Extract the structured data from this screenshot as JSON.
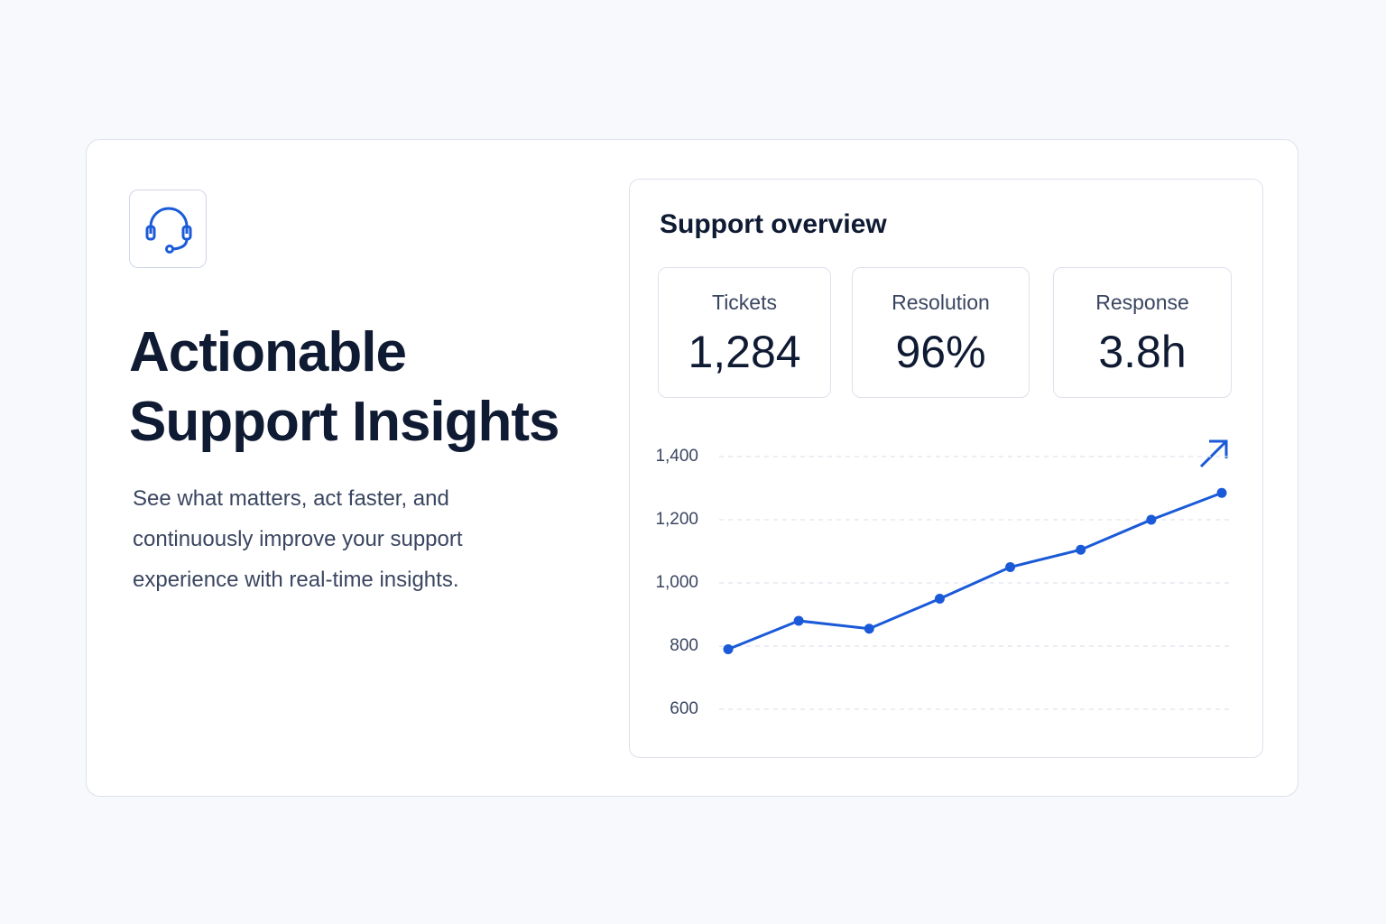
{
  "hero": {
    "title_lines": [
      "Actionable",
      "Support Insights"
    ],
    "description_lines": [
      "See what matters, act faster, and",
      "continuously improve your support",
      "experience with real-time insights."
    ]
  },
  "overview": {
    "title": "Support overview",
    "stats": [
      {
        "label": "Tickets",
        "value": "1,284"
      },
      {
        "label": "Resolution",
        "value": "96%"
      },
      {
        "label": "Response",
        "value": "3.8h"
      }
    ]
  },
  "chart_data": {
    "type": "line",
    "categories": [
      null,
      null,
      null,
      null,
      null,
      null,
      null,
      null
    ],
    "values": [
      790,
      880,
      855,
      950,
      1050,
      1105,
      1200,
      1285
    ],
    "color": "#1a5ad8",
    "ylim": [
      600,
      1400
    ],
    "yticks": [
      600,
      800,
      {
        "value": 1000,
        "label": "1,000"
      },
      {
        "value": 1200,
        "label": "1,200"
      },
      {
        "value": 1400,
        "label": "1,400"
      }
    ],
    "grid": true
  }
}
